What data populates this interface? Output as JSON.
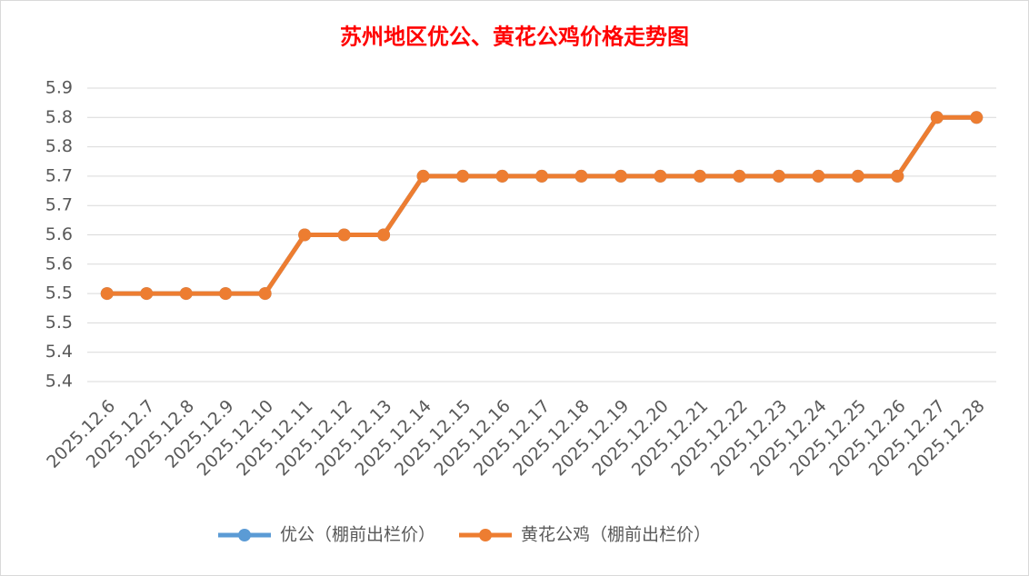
{
  "chart_data": {
    "type": "line",
    "title": "苏州地区优公、黄花公鸡价格走势图",
    "categories": [
      "2025.12.6",
      "2025.12.7",
      "2025.12.8",
      "2025.12.9",
      "2025.12.10",
      "2025.12.11",
      "2025.12.12",
      "2025.12.13",
      "2025.12.14",
      "2025.12.15",
      "2025.12.16",
      "2025.12.17",
      "2025.12.18",
      "2025.12.19",
      "2025.12.20",
      "2025.12.21",
      "2025.12.22",
      "2025.12.23",
      "2025.12.24",
      "2025.12.25",
      "2025.12.26",
      "2025.12.27",
      "2025.12.28"
    ],
    "series": [
      {
        "name": "优公（棚前出栏价）",
        "color": "#5b9bd5",
        "values": [
          5.5,
          5.5,
          5.5,
          5.5,
          5.5,
          5.6,
          5.6,
          5.6,
          5.7,
          5.7,
          5.7,
          5.7,
          5.7,
          5.7,
          5.7,
          5.7,
          5.7,
          5.7,
          5.7,
          5.7,
          5.7,
          5.8,
          5.8
        ]
      },
      {
        "name": "黄花公鸡（棚前出栏价）",
        "color": "#ed7d31",
        "values": [
          5.5,
          5.5,
          5.5,
          5.5,
          5.5,
          5.6,
          5.6,
          5.6,
          5.7,
          5.7,
          5.7,
          5.7,
          5.7,
          5.7,
          5.7,
          5.7,
          5.7,
          5.7,
          5.7,
          5.7,
          5.7,
          5.8,
          5.8
        ]
      }
    ],
    "ylim": [
      5.35,
      5.85
    ],
    "yticks": [
      {
        "value": 5.35,
        "label": "5.4"
      },
      5.4,
      {
        "value": 5.45,
        "label": "5.5"
      },
      5.5,
      {
        "value": 5.55,
        "label": "5.6"
      },
      5.6,
      {
        "value": 5.65,
        "label": "5.7"
      },
      5.7,
      {
        "value": 5.75,
        "label": "5.8"
      },
      5.8,
      {
        "value": 5.85,
        "label": "5.9"
      }
    ],
    "grid": true,
    "legend": "bottom"
  }
}
